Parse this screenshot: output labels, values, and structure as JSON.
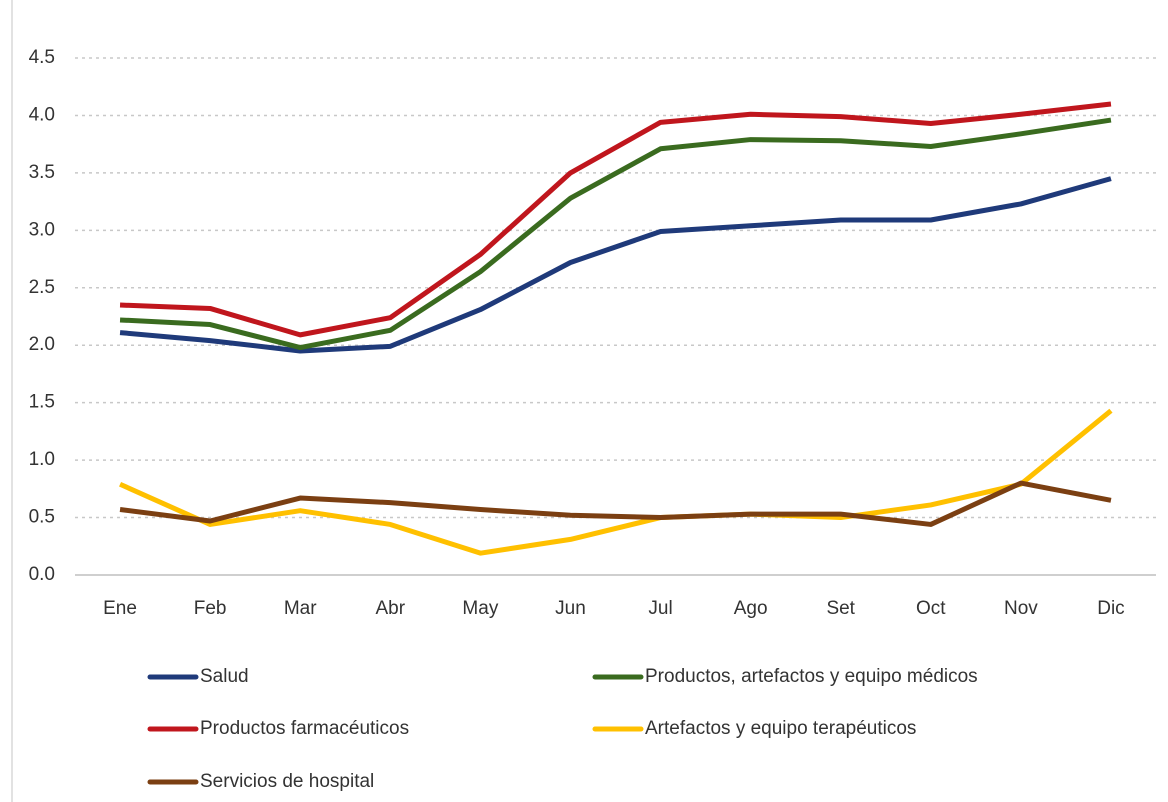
{
  "chart_data": {
    "type": "line",
    "categories": [
      "Ene",
      "Feb",
      "Mar",
      "Abr",
      "May",
      "Jun",
      "Jul",
      "Ago",
      "Set",
      "Oct",
      "Nov",
      "Dic"
    ],
    "series": [
      {
        "name": "Salud",
        "color": "#1f3a7a",
        "values": [
          2.11,
          2.04,
          1.95,
          1.99,
          2.31,
          2.72,
          2.99,
          3.04,
          3.09,
          3.09,
          3.23,
          3.45
        ]
      },
      {
        "name": "Productos, artefactos y equipo médicos",
        "color": "#3a6b1f",
        "values": [
          2.22,
          2.18,
          1.98,
          2.13,
          2.64,
          3.28,
          3.71,
          3.79,
          3.78,
          3.73,
          3.84,
          3.96
        ]
      },
      {
        "name": "Productos farmacéuticos",
        "color": "#c0161d",
        "values": [
          2.35,
          2.32,
          2.09,
          2.24,
          2.79,
          3.5,
          3.94,
          4.01,
          3.99,
          3.93,
          4.01,
          4.1
        ]
      },
      {
        "name": "Artefactos y equipo terapéuticos",
        "color": "#ffc000",
        "values": [
          0.79,
          0.44,
          0.56,
          0.44,
          0.19,
          0.31,
          0.5,
          0.53,
          0.5,
          0.61,
          0.79,
          1.43
        ]
      },
      {
        "name": "Servicios de hospital",
        "color": "#7b3f12",
        "values": [
          0.57,
          0.47,
          0.67,
          0.63,
          0.57,
          0.52,
          0.5,
          0.53,
          0.53,
          0.44,
          0.8,
          0.65
        ]
      }
    ],
    "ylim": [
      0,
      4.5
    ],
    "yticks": [
      {
        "value": 0,
        "label": "0.0"
      },
      0.5,
      {
        "value": 1,
        "label": "1.0"
      },
      1.5,
      {
        "value": 2,
        "label": "2.0"
      },
      2.5,
      {
        "value": 3,
        "label": "3.0"
      },
      3.5,
      {
        "value": 4,
        "label": "4.0"
      },
      4.5
    ],
    "grid": true
  }
}
